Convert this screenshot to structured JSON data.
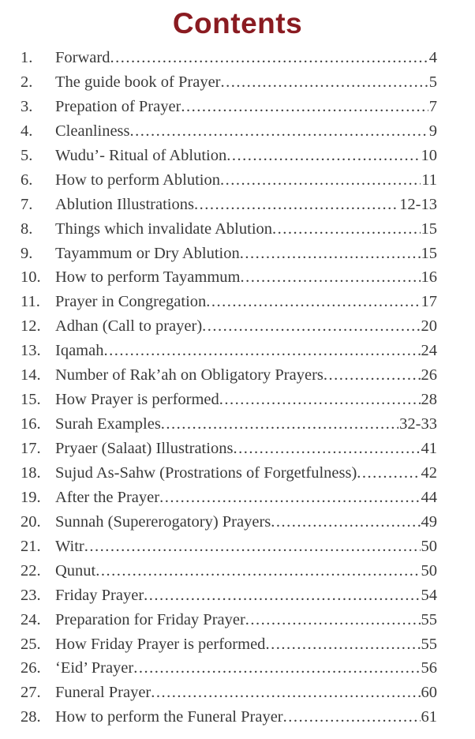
{
  "title": "Contents",
  "colors": {
    "title": "#8a1b21",
    "text": "#3a3a3a",
    "background": "#ffffff"
  },
  "toc": {
    "items": [
      {
        "num": "1.",
        "label": "Forward",
        "page": "4"
      },
      {
        "num": "2.",
        "label": "The guide book of Prayer",
        "page": "5"
      },
      {
        "num": "3.",
        "label": "Prepation of Prayer",
        "page": "7"
      },
      {
        "num": "4.",
        "label": "Cleanliness",
        "page": "9"
      },
      {
        "num": "5.",
        "label": "Wudu’- Ritual of Ablution",
        "page": "10"
      },
      {
        "num": "6.",
        "label": "How to perform Ablution",
        "page": "11"
      },
      {
        "num": "7.",
        "label": "Ablution Illustrations",
        "page": "12-13"
      },
      {
        "num": "8.",
        "label": "Things which invalidate Ablution",
        "page": "15"
      },
      {
        "num": "9.",
        "label": "Tayammum or Dry Ablution",
        "page": "15"
      },
      {
        "num": "10.",
        "label": "How to perform Tayammum",
        "page": "16"
      },
      {
        "num": "11.",
        "label": "Prayer in Congregation",
        "page": "17"
      },
      {
        "num": "12.",
        "label": "Adhan (Call to prayer)",
        "page": "20"
      },
      {
        "num": "13.",
        "label": "Iqamah",
        "page": "24"
      },
      {
        "num": "14.",
        "label": "Number of Rak’ah on Obligatory Prayers",
        "page": "26"
      },
      {
        "num": "15.",
        "label": "How Prayer is performed",
        "page": "28"
      },
      {
        "num": "16.",
        "label": "Surah Examples",
        "page": "32-33"
      },
      {
        "num": "17.",
        "label": "Pryaer (Salaat) Illustrations",
        "page": "41"
      },
      {
        "num": "18.",
        "label": "Sujud As-Sahw (Prostrations of Forgetfulness)",
        "page": "42"
      },
      {
        "num": "19.",
        "label": "After the Prayer",
        "page": "44"
      },
      {
        "num": "20.",
        "label": "Sunnah (Supererogatory) Prayers",
        "page": "49"
      },
      {
        "num": "21.",
        "label": "Witr",
        "page": "50"
      },
      {
        "num": "22.",
        "label": "Qunut",
        "page": "50"
      },
      {
        "num": "23.",
        "label": "Friday Prayer",
        "page": "54"
      },
      {
        "num": "24.",
        "label": "Preparation for Friday Prayer",
        "page": "55"
      },
      {
        "num": "25.",
        "label": "How Friday Prayer is performed",
        "page": "55"
      },
      {
        "num": "26.",
        "label": "‘Eid’ Prayer",
        "page": "56"
      },
      {
        "num": "27.",
        "label": "Funeral Prayer",
        "page": "60"
      },
      {
        "num": "28.",
        "label": "How to perform the Funeral Prayer",
        "page": "61"
      }
    ]
  }
}
